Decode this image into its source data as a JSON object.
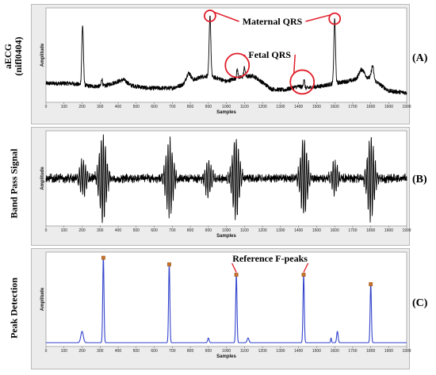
{
  "chart_data": [
    {
      "id": "A",
      "type": "line",
      "side_label": "aECG\n(nifl0404)",
      "panel_letter": "(A)",
      "xlabel": "Samples",
      "ylabel": "Amplitude",
      "xlim": [
        0,
        1999
      ],
      "ylim": [
        0,
        100
      ],
      "x_ticks": [
        0,
        100,
        200,
        300,
        400,
        500,
        600,
        700,
        800,
        900,
        1000,
        1100,
        1200,
        1300,
        1400,
        1500,
        1600,
        1700,
        1800,
        1900,
        1999
      ],
      "color": "#000000",
      "baseline": 20,
      "drift": [
        [
          0,
          20
        ],
        [
          140,
          20
        ],
        [
          250,
          17
        ],
        [
          320,
          17
        ],
        [
          430,
          24
        ],
        [
          470,
          18
        ],
        [
          560,
          15
        ],
        [
          700,
          15
        ],
        [
          780,
          20
        ],
        [
          860,
          27
        ],
        [
          900,
          28
        ],
        [
          960,
          25
        ],
        [
          1000,
          22
        ],
        [
          1060,
          26
        ],
        [
          1150,
          28
        ],
        [
          1250,
          14
        ],
        [
          1320,
          13
        ],
        [
          1400,
          17
        ],
        [
          1440,
          15
        ],
        [
          1520,
          17
        ],
        [
          1600,
          20
        ],
        [
          1660,
          22
        ],
        [
          1720,
          24
        ],
        [
          1800,
          26
        ],
        [
          1900,
          12
        ],
        [
          1999,
          10
        ]
      ],
      "peaks": [
        {
          "x": 203,
          "height": 63,
          "width": 9
        },
        {
          "x": 909,
          "height": 65,
          "width": 9
        },
        {
          "x": 1600,
          "height": 68,
          "width": 9
        },
        {
          "x": 310,
          "height": 8,
          "width": 7
        },
        {
          "x": 1060,
          "height": 9,
          "width": 7
        },
        {
          "x": 1100,
          "height": 10,
          "width": 8
        },
        {
          "x": 1430,
          "height": 9,
          "width": 7
        },
        {
          "x": 1810,
          "height": 14,
          "width": 12
        },
        {
          "x": 790,
          "height": 10,
          "width": 25
        },
        {
          "x": 1750,
          "height": 10,
          "width": 30
        }
      ],
      "noise": 2.2,
      "annotations": [
        {
          "text": "Maternal QRS",
          "circles_x": [
            909,
            1600
          ]
        },
        {
          "text": "Fetal QRS",
          "circles_x": [
            1060,
            1420
          ]
        }
      ]
    },
    {
      "id": "B",
      "type": "line",
      "side_label": "Band Pass Signal",
      "panel_letter": "(B)",
      "xlabel": "Samples",
      "ylabel": "Amplitude",
      "xlim": [
        0,
        1999
      ],
      "ylim": [
        -100,
        100
      ],
      "x_ticks": [
        0,
        100,
        200,
        300,
        400,
        500,
        600,
        700,
        800,
        900,
        1000,
        1100,
        1200,
        1300,
        1400,
        1500,
        1600,
        1700,
        1800,
        1900,
        1999
      ],
      "color": "#000000",
      "bursts": [
        {
          "x": 315,
          "amp": 92
        },
        {
          "x": 685,
          "amp": 82
        },
        {
          "x": 1052,
          "amp": 88
        },
        {
          "x": 1430,
          "amp": 82
        },
        {
          "x": 1800,
          "amp": 88
        },
        {
          "x": 205,
          "amp": 38
        },
        {
          "x": 900,
          "amp": 38
        },
        {
          "x": 1600,
          "amp": 34
        }
      ],
      "noise": 10
    },
    {
      "id": "C",
      "type": "line",
      "side_label": "Peak Detection",
      "panel_letter": "(C)",
      "xlabel": "Samples",
      "ylabel": "Amplitude",
      "xlim": [
        0,
        1999
      ],
      "ylim": [
        0,
        100
      ],
      "x_ticks": [
        0,
        100,
        200,
        300,
        400,
        500,
        600,
        700,
        800,
        900,
        1000,
        1100,
        1200,
        1300,
        1400,
        1500,
        1600,
        1700,
        1800,
        1900,
        1999
      ],
      "color": "#3344cc",
      "baseline": 4,
      "peaks": [
        {
          "x": 318,
          "height": 90,
          "width": 7
        },
        {
          "x": 683,
          "height": 83,
          "width": 7
        },
        {
          "x": 1055,
          "height": 72,
          "width": 7
        },
        {
          "x": 1428,
          "height": 72,
          "width": 7
        },
        {
          "x": 1800,
          "height": 62,
          "width": 7
        },
        {
          "x": 200,
          "height": 12,
          "width": 14
        },
        {
          "x": 1615,
          "height": 12,
          "width": 8
        },
        {
          "x": 1580,
          "height": 5,
          "width": 5
        },
        {
          "x": 900,
          "height": 5,
          "width": 8
        },
        {
          "x": 1120,
          "height": 5,
          "width": 10
        }
      ],
      "markers_x": [
        318,
        683,
        1055,
        1428,
        1800
      ],
      "marker_color": "#c8722a",
      "annotations": [
        {
          "text": "Reference F-peaks",
          "targets_x": [
            1055,
            1428
          ]
        }
      ]
    }
  ]
}
